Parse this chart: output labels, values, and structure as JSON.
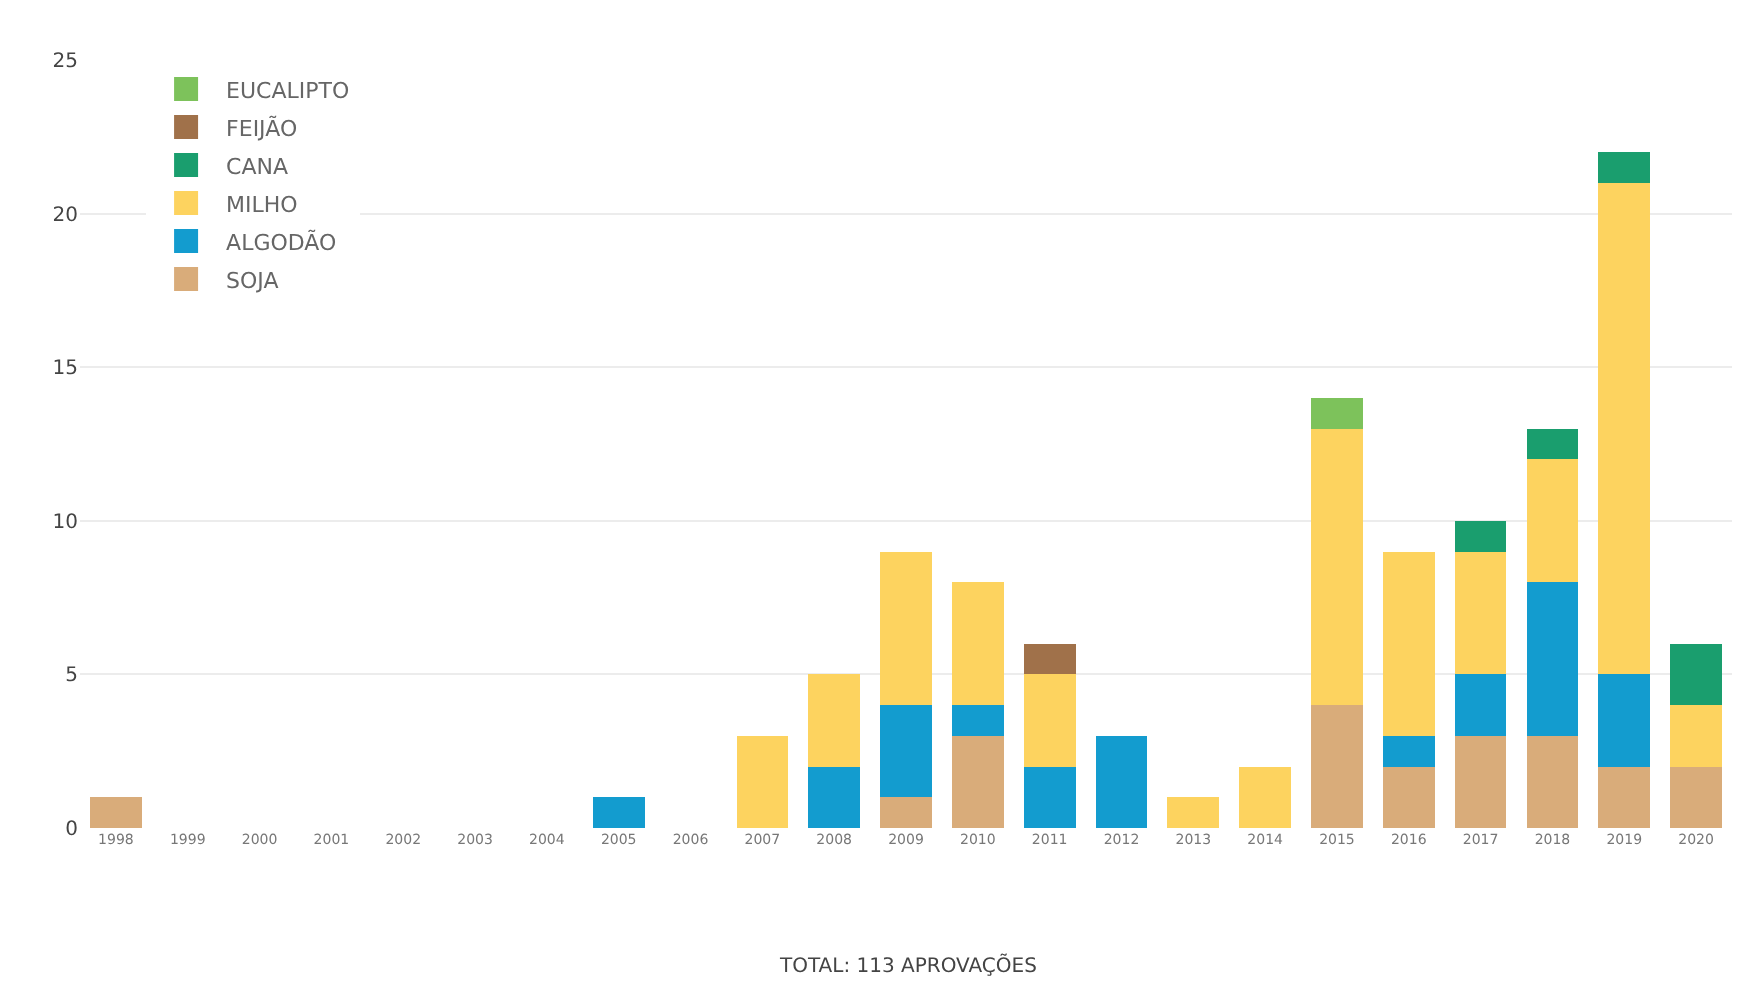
{
  "chart_data": {
    "type": "bar",
    "stacked": true,
    "categories": [
      "1998",
      "1999",
      "2000",
      "2001",
      "2002",
      "2003",
      "2004",
      "2005",
      "2006",
      "2007",
      "2008",
      "2009",
      "2010",
      "2011",
      "2012",
      "2013",
      "2014",
      "2015",
      "2016",
      "2017",
      "2018",
      "2019",
      "2020"
    ],
    "series": [
      {
        "name": "SOJA",
        "color": "#d9ac7a",
        "values": [
          1,
          0,
          0,
          0,
          0,
          0,
          0,
          0,
          0,
          0,
          0,
          1,
          3,
          0,
          0,
          0,
          0,
          4,
          2,
          3,
          3,
          2,
          2
        ]
      },
      {
        "name": "ALGODÃO",
        "color": "#139ccf",
        "values": [
          0,
          0,
          0,
          0,
          0,
          0,
          0,
          1,
          0,
          0,
          2,
          3,
          1,
          2,
          3,
          0,
          0,
          0,
          1,
          2,
          5,
          3,
          0
        ]
      },
      {
        "name": "MILHO",
        "color": "#fdd35f",
        "values": [
          0,
          0,
          0,
          0,
          0,
          0,
          0,
          0,
          0,
          3,
          3,
          5,
          4,
          3,
          0,
          1,
          2,
          9,
          6,
          4,
          4,
          16,
          2
        ]
      },
      {
        "name": "CANA",
        "color": "#1a9e6e",
        "values": [
          0,
          0,
          0,
          0,
          0,
          0,
          0,
          0,
          0,
          0,
          0,
          0,
          0,
          0,
          0,
          0,
          0,
          0,
          0,
          1,
          1,
          1,
          2
        ]
      },
      {
        "name": "FEIJÃO",
        "color": "#a0714a",
        "values": [
          0,
          0,
          0,
          0,
          0,
          0,
          0,
          0,
          0,
          0,
          0,
          0,
          0,
          1,
          0,
          0,
          0,
          0,
          0,
          0,
          0,
          0,
          0
        ]
      },
      {
        "name": "EUCALIPTO",
        "color": "#7dc25b",
        "values": [
          0,
          0,
          0,
          0,
          0,
          0,
          0,
          0,
          0,
          0,
          0,
          0,
          0,
          0,
          0,
          0,
          0,
          1,
          0,
          0,
          0,
          0,
          0
        ]
      }
    ],
    "ylim": [
      0,
      25
    ],
    "yticks": [
      0,
      5,
      10,
      15,
      20,
      25
    ],
    "grid": "y",
    "legend": "top left",
    "annotations": [
      "TOTAL: 113 APROVAÇÕES"
    ]
  }
}
